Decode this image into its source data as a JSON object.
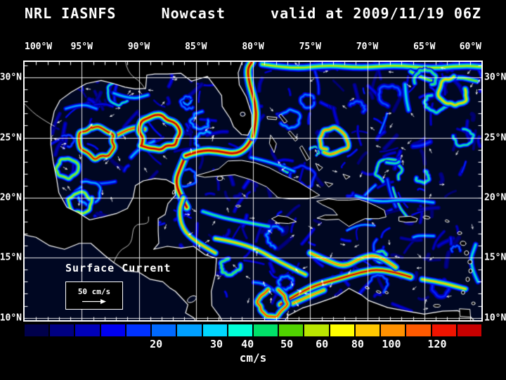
{
  "title": {
    "product": "NRL IASNFS",
    "mode": "Nowcast",
    "valid": "valid at 2009/11/19 06Z"
  },
  "axes": {
    "lon_ticks": [
      {
        "label": "100°W",
        "pos": 0
      },
      {
        "label": "95°W",
        "pos": 0.125
      },
      {
        "label": "90°W",
        "pos": 0.25
      },
      {
        "label": "85°W",
        "pos": 0.375
      },
      {
        "label": "80°W",
        "pos": 0.5
      },
      {
        "label": "75°W",
        "pos": 0.625
      },
      {
        "label": "70°W",
        "pos": 0.75
      },
      {
        "label": "65°W",
        "pos": 0.875
      },
      {
        "label": "60°W",
        "pos": 1
      }
    ],
    "lat_ticks": [
      {
        "label": "30°N",
        "pos": 0.0605
      },
      {
        "label": "25°N",
        "pos": 0.293
      },
      {
        "label": "20°N",
        "pos": 0.5256
      },
      {
        "label": "15°N",
        "pos": 0.758
      },
      {
        "label": "10°N",
        "pos": 0.9907
      }
    ]
  },
  "map_overlay": {
    "label": "Surface Current",
    "scale_text": "50 cm/s"
  },
  "colorbar": {
    "unit": "cm/s",
    "segments": [
      "#00004b",
      "#000082",
      "#0000b9",
      "#0000f0",
      "#0032ff",
      "#0069ff",
      "#00a0ff",
      "#00d7ff",
      "#00ffd7",
      "#00e169",
      "#50d200",
      "#b9e600",
      "#ffff00",
      "#ffc800",
      "#ff9100",
      "#ff5a00",
      "#f01400",
      "#c80000"
    ],
    "ticks": [
      {
        "label": "20",
        "pos": 0.288
      },
      {
        "label": "30",
        "pos": 0.42
      },
      {
        "label": "40",
        "pos": 0.488
      },
      {
        "label": "50",
        "pos": 0.574
      },
      {
        "label": "60",
        "pos": 0.651
      },
      {
        "label": "80",
        "pos": 0.729
      },
      {
        "label": "100",
        "pos": 0.803
      },
      {
        "label": "120",
        "pos": 0.903
      }
    ]
  },
  "chart_data": {
    "type": "heatmap",
    "title": "NRL IASNFS Nowcast valid at 2009/11/19 06Z",
    "variable": "Surface Current",
    "unit": "cm/s",
    "colorbar_values": [
      20,
      30,
      40,
      50,
      60,
      80,
      100,
      120
    ],
    "lon_labels": [
      "100°W",
      "95°W",
      "90°W",
      "85°W",
      "80°W",
      "75°W",
      "70°W",
      "65°W",
      "60°W"
    ],
    "lat_labels": [
      "30°N",
      "25°N",
      "20°N",
      "15°N",
      "10°N"
    ],
    "scale_reference": "50 cm/s"
  },
  "colors": {
    "ocean": "#000722",
    "land": "#000000",
    "coastline": "#ffffff",
    "grid": "#ffffff"
  }
}
